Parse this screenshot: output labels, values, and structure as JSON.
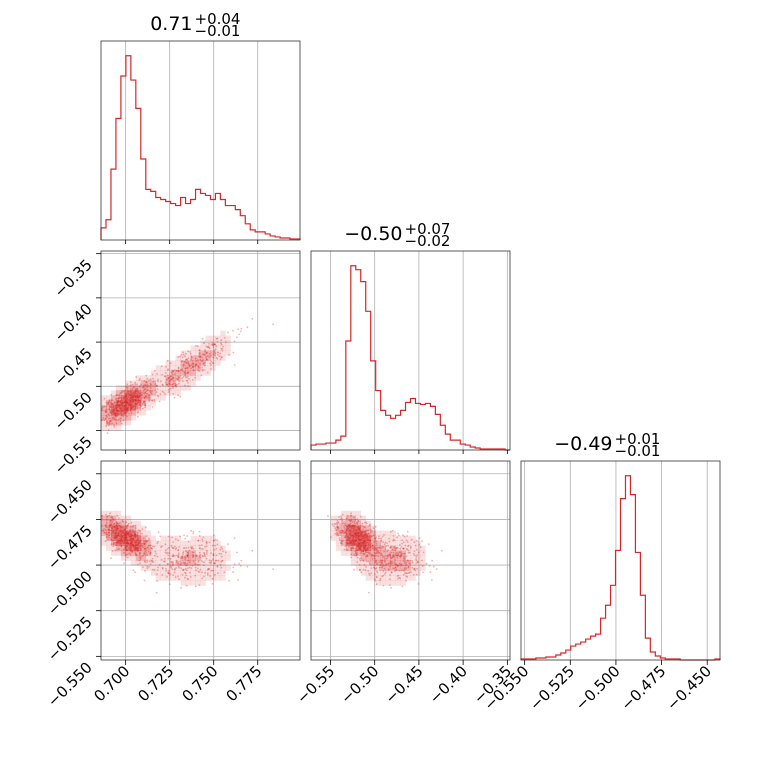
{
  "chart_data": {
    "type": "corner",
    "color": "#d62728",
    "parameters": [
      "",
      "",
      ""
    ],
    "titles": [
      {
        "median": "0.71",
        "plus": "+0.04",
        "minus": "−0.01"
      },
      {
        "median": "−0.50",
        "plus": "+0.07",
        "minus": "−0.02"
      },
      {
        "median": "−0.49",
        "plus": "+0.01",
        "minus": "−0.01"
      }
    ],
    "ranges": [
      [
        0.686,
        0.799
      ],
      [
        -0.572,
        -0.347
      ],
      [
        -0.552,
        -0.443
      ]
    ],
    "ticks": [
      {
        "values": [
          0.7,
          0.725,
          0.75,
          0.775
        ],
        "labels": [
          "0.700",
          "0.725",
          "0.750",
          "0.775"
        ]
      },
      {
        "values": [
          -0.55,
          -0.5,
          -0.45,
          -0.4,
          -0.35
        ],
        "labels": [
          "−0.55",
          "−0.50",
          "−0.45",
          "−0.40",
          "−0.35"
        ]
      },
      {
        "values": [
          -0.55,
          -0.525,
          -0.5,
          -0.475,
          -0.45
        ],
        "labels": [
          "−0.550",
          "−0.525",
          "−0.500",
          "−0.475",
          "−0.450"
        ]
      }
    ],
    "histograms": [
      {
        "bins": 40,
        "counts": [
          12,
          20,
          70,
          120,
          162,
          182,
          158,
          130,
          80,
          50,
          48,
          42,
          40,
          38,
          36,
          34,
          42,
          36,
          40,
          50,
          46,
          44,
          40,
          46,
          40,
          34,
          34,
          30,
          24,
          16,
          10,
          8,
          8,
          6,
          4,
          3,
          2,
          2,
          1,
          1
        ]
      },
      {
        "bins": 40,
        "counts": [
          5,
          6,
          6,
          7,
          7,
          10,
          14,
          110,
          186,
          182,
          170,
          140,
          90,
          60,
          40,
          35,
          32,
          35,
          40,
          48,
          52,
          47,
          46,
          47,
          44,
          36,
          25,
          16,
          10,
          10,
          6,
          5,
          3,
          2,
          1,
          1,
          1,
          1,
          1,
          0
        ]
      },
      {
        "bins": 40,
        "counts": [
          1,
          1,
          1,
          2,
          2,
          3,
          3,
          5,
          7,
          10,
          14,
          16,
          18,
          21,
          24,
          26,
          42,
          55,
          75,
          110,
          162,
          185,
          166,
          108,
          65,
          22,
          8,
          4,
          2,
          1,
          1,
          1,
          0,
          0,
          0,
          0,
          0,
          0,
          0,
          1
        ]
      }
    ],
    "pairs": [
      {
        "row": 1,
        "col": 0,
        "relation": "strong positive correlation"
      },
      {
        "row": 2,
        "col": 0,
        "relation": "negative correlation with two clumps"
      },
      {
        "row": 2,
        "col": 1,
        "relation": "negative correlation with two clumps"
      }
    ],
    "grid": true
  }
}
